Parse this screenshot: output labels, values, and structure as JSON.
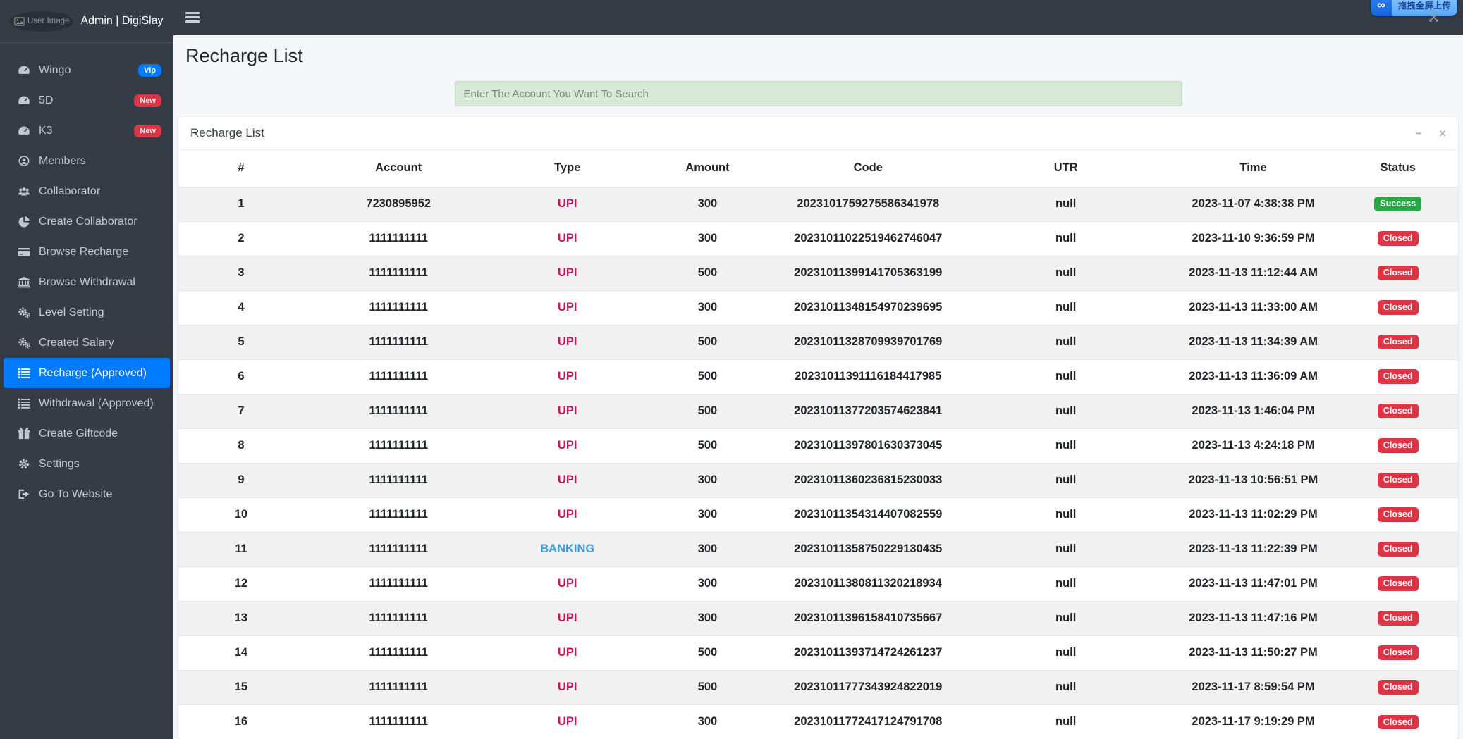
{
  "user_panel": {
    "broken_image_alt": "User Image",
    "title": "Admin | DigiSlay"
  },
  "extension_overlay": {
    "icon_glyph": "∞",
    "label": "拖拽全屏上传"
  },
  "page": {
    "title": "Recharge List"
  },
  "search": {
    "placeholder": "Enter The Account You Want To Search"
  },
  "card": {
    "title": "Recharge List",
    "minimize_glyph": "−",
    "close_glyph": "×"
  },
  "sidebar": {
    "items": [
      {
        "label": "Wingo",
        "icon": "gauge-icon",
        "badge": "Vip",
        "badge_color": "vip_blue"
      },
      {
        "label": "5D",
        "icon": "gauge-icon",
        "badge": "New",
        "badge_color": "new_red"
      },
      {
        "label": "K3",
        "icon": "gauge-icon",
        "badge": "New",
        "badge_color": "new_red"
      },
      {
        "label": "Members",
        "icon": "user-circle-icon"
      },
      {
        "label": "Collaborator",
        "icon": "users-icon"
      },
      {
        "label": "Create Collaborator",
        "icon": "pie-chart-icon"
      },
      {
        "label": "Browse Recharge",
        "icon": "credit-card-icon"
      },
      {
        "label": "Browse Withdrawal",
        "icon": "bank-icon"
      },
      {
        "label": "Level Setting",
        "icon": "gears-icon"
      },
      {
        "label": "Created Salary",
        "icon": "gears-icon"
      },
      {
        "label": "Recharge (Approved)",
        "icon": "list-icon",
        "active": true
      },
      {
        "label": "Withdrawal (Approved)",
        "icon": "list-icon"
      },
      {
        "label": "Create Giftcode",
        "icon": "gift-icon"
      },
      {
        "label": "Settings",
        "icon": "gear-icon"
      },
      {
        "label": "Go To Website",
        "icon": "sign-out-icon"
      }
    ]
  },
  "table": {
    "columns": [
      "#",
      "Account",
      "Type",
      "Amount",
      "Code",
      "UTR",
      "Time",
      "Status"
    ],
    "rows": [
      {
        "num": "1",
        "account": "7230895952",
        "type": "UPI",
        "amount": "300",
        "code": "2023101759275586341978",
        "utr": "null",
        "time": "2023-11-07 4:38:38 PM",
        "status": "Success"
      },
      {
        "num": "2",
        "account": "1111111111",
        "type": "UPI",
        "amount": "300",
        "code": "20231011022519462746047",
        "utr": "null",
        "time": "2023-11-10 9:36:59 PM",
        "status": "Closed"
      },
      {
        "num": "3",
        "account": "1111111111",
        "type": "UPI",
        "amount": "500",
        "code": "20231011399141705363199",
        "utr": "null",
        "time": "2023-11-13 11:12:44 AM",
        "status": "Closed"
      },
      {
        "num": "4",
        "account": "1111111111",
        "type": "UPI",
        "amount": "300",
        "code": "20231011348154970239695",
        "utr": "null",
        "time": "2023-11-13 11:33:00 AM",
        "status": "Closed"
      },
      {
        "num": "5",
        "account": "1111111111",
        "type": "UPI",
        "amount": "500",
        "code": "20231011328709939701769",
        "utr": "null",
        "time": "2023-11-13 11:34:39 AM",
        "status": "Closed"
      },
      {
        "num": "6",
        "account": "1111111111",
        "type": "UPI",
        "amount": "500",
        "code": "20231011391116184417985",
        "utr": "null",
        "time": "2023-11-13 11:36:09 AM",
        "status": "Closed"
      },
      {
        "num": "7",
        "account": "1111111111",
        "type": "UPI",
        "amount": "500",
        "code": "20231011377203574623841",
        "utr": "null",
        "time": "2023-11-13 1:46:04 PM",
        "status": "Closed"
      },
      {
        "num": "8",
        "account": "1111111111",
        "type": "UPI",
        "amount": "500",
        "code": "20231011397801630373045",
        "utr": "null",
        "time": "2023-11-13 4:24:18 PM",
        "status": "Closed"
      },
      {
        "num": "9",
        "account": "1111111111",
        "type": "UPI",
        "amount": "300",
        "code": "20231011360236815230033",
        "utr": "null",
        "time": "2023-11-13 10:56:51 PM",
        "status": "Closed"
      },
      {
        "num": "10",
        "account": "1111111111",
        "type": "UPI",
        "amount": "300",
        "code": "20231011354314407082559",
        "utr": "null",
        "time": "2023-11-13 11:02:29 PM",
        "status": "Closed"
      },
      {
        "num": "11",
        "account": "1111111111",
        "type": "BANKING",
        "amount": "300",
        "code": "20231011358750229130435",
        "utr": "null",
        "time": "2023-11-13 11:22:39 PM",
        "status": "Closed"
      },
      {
        "num": "12",
        "account": "1111111111",
        "type": "UPI",
        "amount": "300",
        "code": "20231011380811320218934",
        "utr": "null",
        "time": "2023-11-13 11:47:01 PM",
        "status": "Closed"
      },
      {
        "num": "13",
        "account": "1111111111",
        "type": "UPI",
        "amount": "300",
        "code": "20231011396158410735667",
        "utr": "null",
        "time": "2023-11-13 11:47:16 PM",
        "status": "Closed"
      },
      {
        "num": "14",
        "account": "1111111111",
        "type": "UPI",
        "amount": "500",
        "code": "20231011393714724261237",
        "utr": "null",
        "time": "2023-11-13 11:50:27 PM",
        "status": "Closed"
      },
      {
        "num": "15",
        "account": "1111111111",
        "type": "UPI",
        "amount": "500",
        "code": "20231011777343924822019",
        "utr": "null",
        "time": "2023-11-17 8:59:54 PM",
        "status": "Closed"
      },
      {
        "num": "16",
        "account": "1111111111",
        "type": "UPI",
        "amount": "300",
        "code": "20231011772417124791708",
        "utr": "null",
        "time": "2023-11-17 9:19:29 PM",
        "status": "Closed"
      }
    ]
  },
  "colors": {
    "accent_blue": "#007bff",
    "vip_blue": "#007bff",
    "new_red": "#dc3545",
    "type_upi": "#c2185b",
    "type_banking": "#3c9bdc",
    "status_success": "#28a745",
    "status_closed": "#dc3545"
  }
}
